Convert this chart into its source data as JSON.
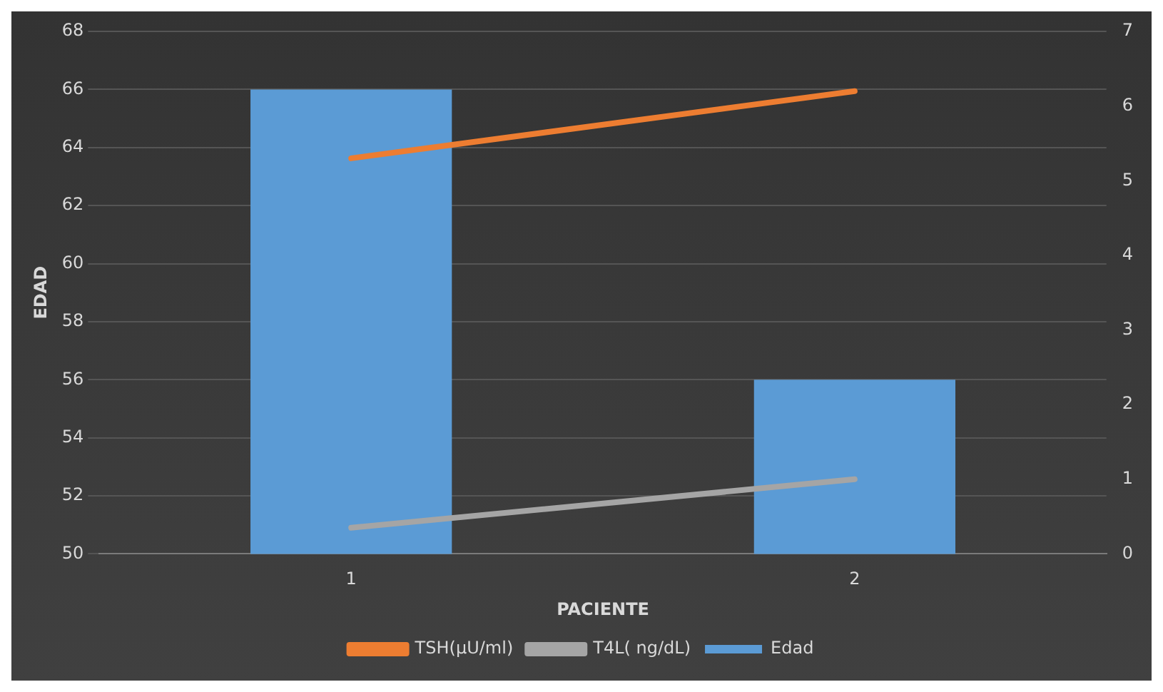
{
  "chart_data": {
    "type": "bar",
    "categories": [
      "1",
      "2"
    ],
    "xlabel": "PACIENTE",
    "ylabel": "EDAD",
    "ylim": [
      50,
      68
    ],
    "yticks": [
      50,
      52,
      54,
      56,
      58,
      60,
      62,
      64,
      66,
      68
    ],
    "y2lim": [
      0,
      7
    ],
    "y2ticks": [
      0,
      1,
      2,
      3,
      4,
      5,
      6,
      7
    ],
    "grid": "y",
    "legend": "bottom",
    "series": [
      {
        "name": "Edad",
        "color": "#5b9bd5",
        "values": [
          66,
          56
        ]
      },
      {
        "name": "TSH(µU/ml)",
        "type": "line",
        "axis": "y2",
        "color": "#ed7d31",
        "values": [
          5.3,
          6.2
        ]
      },
      {
        "name": "T4L( ng/dL)",
        "type": "line",
        "axis": "y2",
        "color": "#a5a5a5",
        "values": [
          0.35,
          1.0
        ]
      }
    ]
  }
}
